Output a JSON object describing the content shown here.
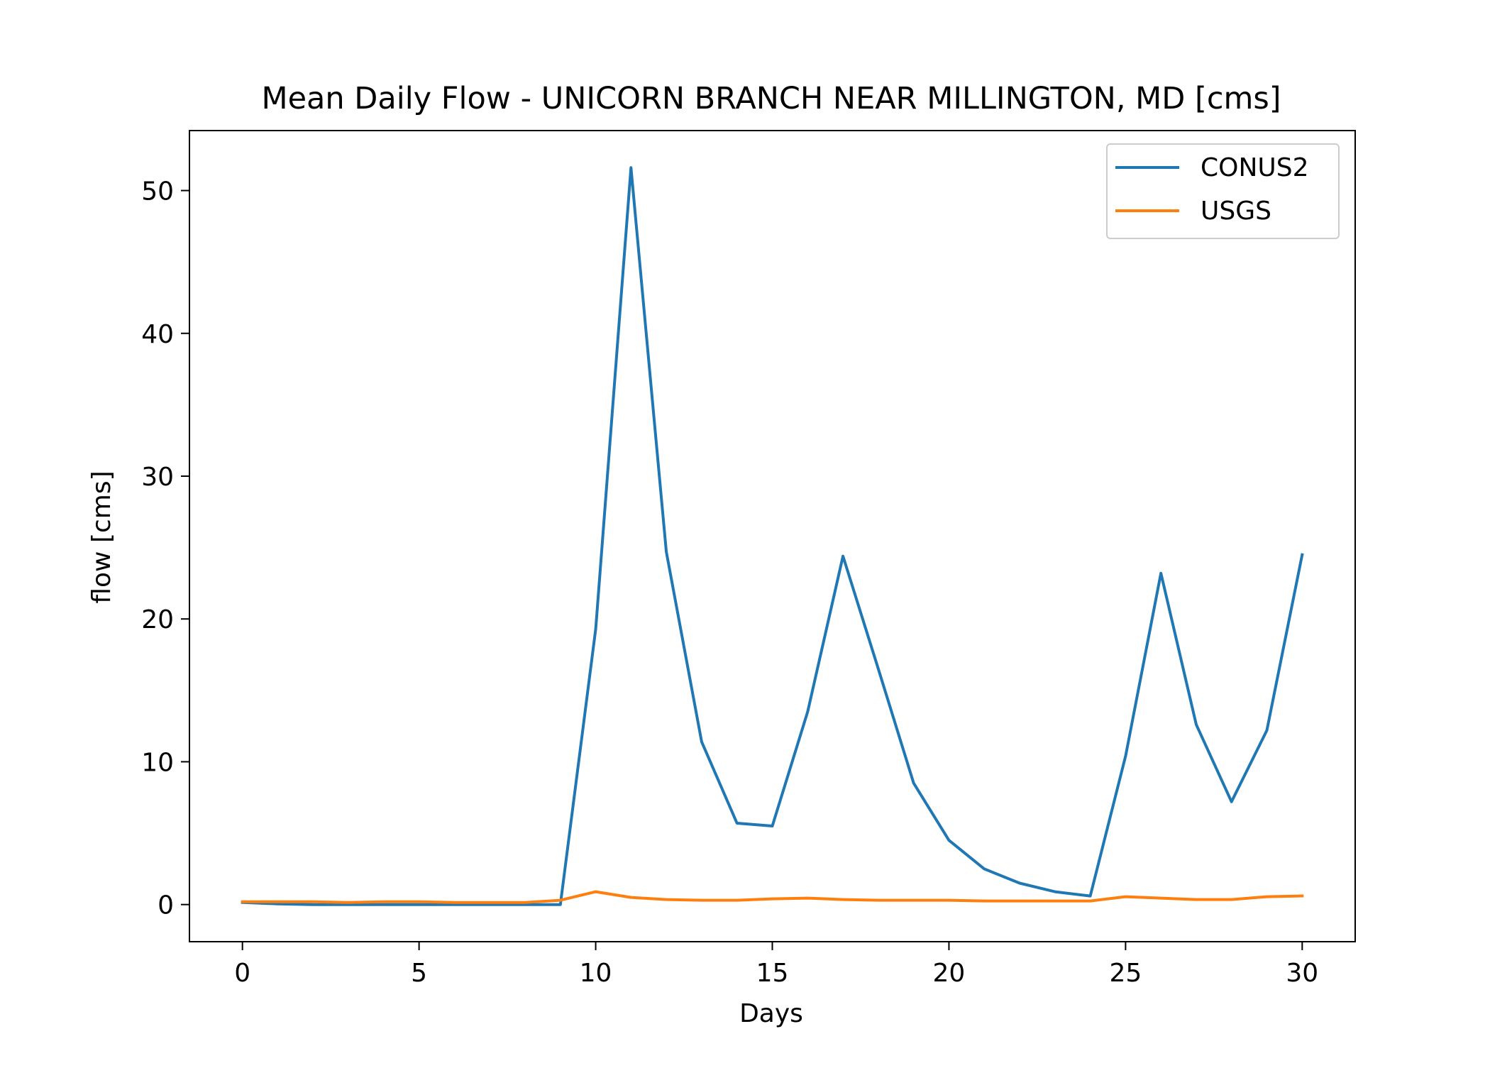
{
  "chart_data": {
    "type": "line",
    "title": "Mean Daily Flow - UNICORN BRANCH NEAR MILLINGTON, MD [cms]",
    "xlabel": "Days",
    "ylabel": "flow [cms]",
    "xlim": [
      -1.5,
      31.5
    ],
    "ylim": [
      -2.6,
      54.2
    ],
    "xticks": [
      0,
      5,
      10,
      15,
      20,
      25,
      30
    ],
    "yticks": [
      0,
      10,
      20,
      30,
      40,
      50
    ],
    "x": [
      0,
      1,
      2,
      3,
      4,
      5,
      6,
      7,
      8,
      9,
      10,
      11,
      12,
      13,
      14,
      15,
      16,
      17,
      18,
      19,
      20,
      21,
      22,
      23,
      24,
      25,
      26,
      27,
      28,
      29,
      30
    ],
    "series": [
      {
        "name": "CONUS2",
        "color": "#1f77b4",
        "values": [
          0.15,
          0.05,
          0.0,
          0.0,
          0.0,
          0.0,
          0.0,
          0.0,
          0.0,
          0.0,
          19.3,
          51.6,
          24.7,
          11.4,
          5.7,
          5.5,
          13.5,
          24.4,
          16.5,
          8.5,
          4.5,
          2.5,
          1.5,
          0.9,
          0.6,
          10.4,
          23.2,
          12.6,
          7.2,
          12.2,
          24.5
        ]
      },
      {
        "name": "USGS",
        "color": "#ff7f0e",
        "values": [
          0.2,
          0.2,
          0.2,
          0.15,
          0.2,
          0.2,
          0.15,
          0.15,
          0.15,
          0.3,
          0.9,
          0.5,
          0.35,
          0.3,
          0.3,
          0.4,
          0.45,
          0.35,
          0.3,
          0.3,
          0.3,
          0.25,
          0.25,
          0.25,
          0.25,
          0.55,
          0.45,
          0.35,
          0.35,
          0.55,
          0.6
        ]
      }
    ],
    "grid": false,
    "legend_position": "top-right"
  }
}
